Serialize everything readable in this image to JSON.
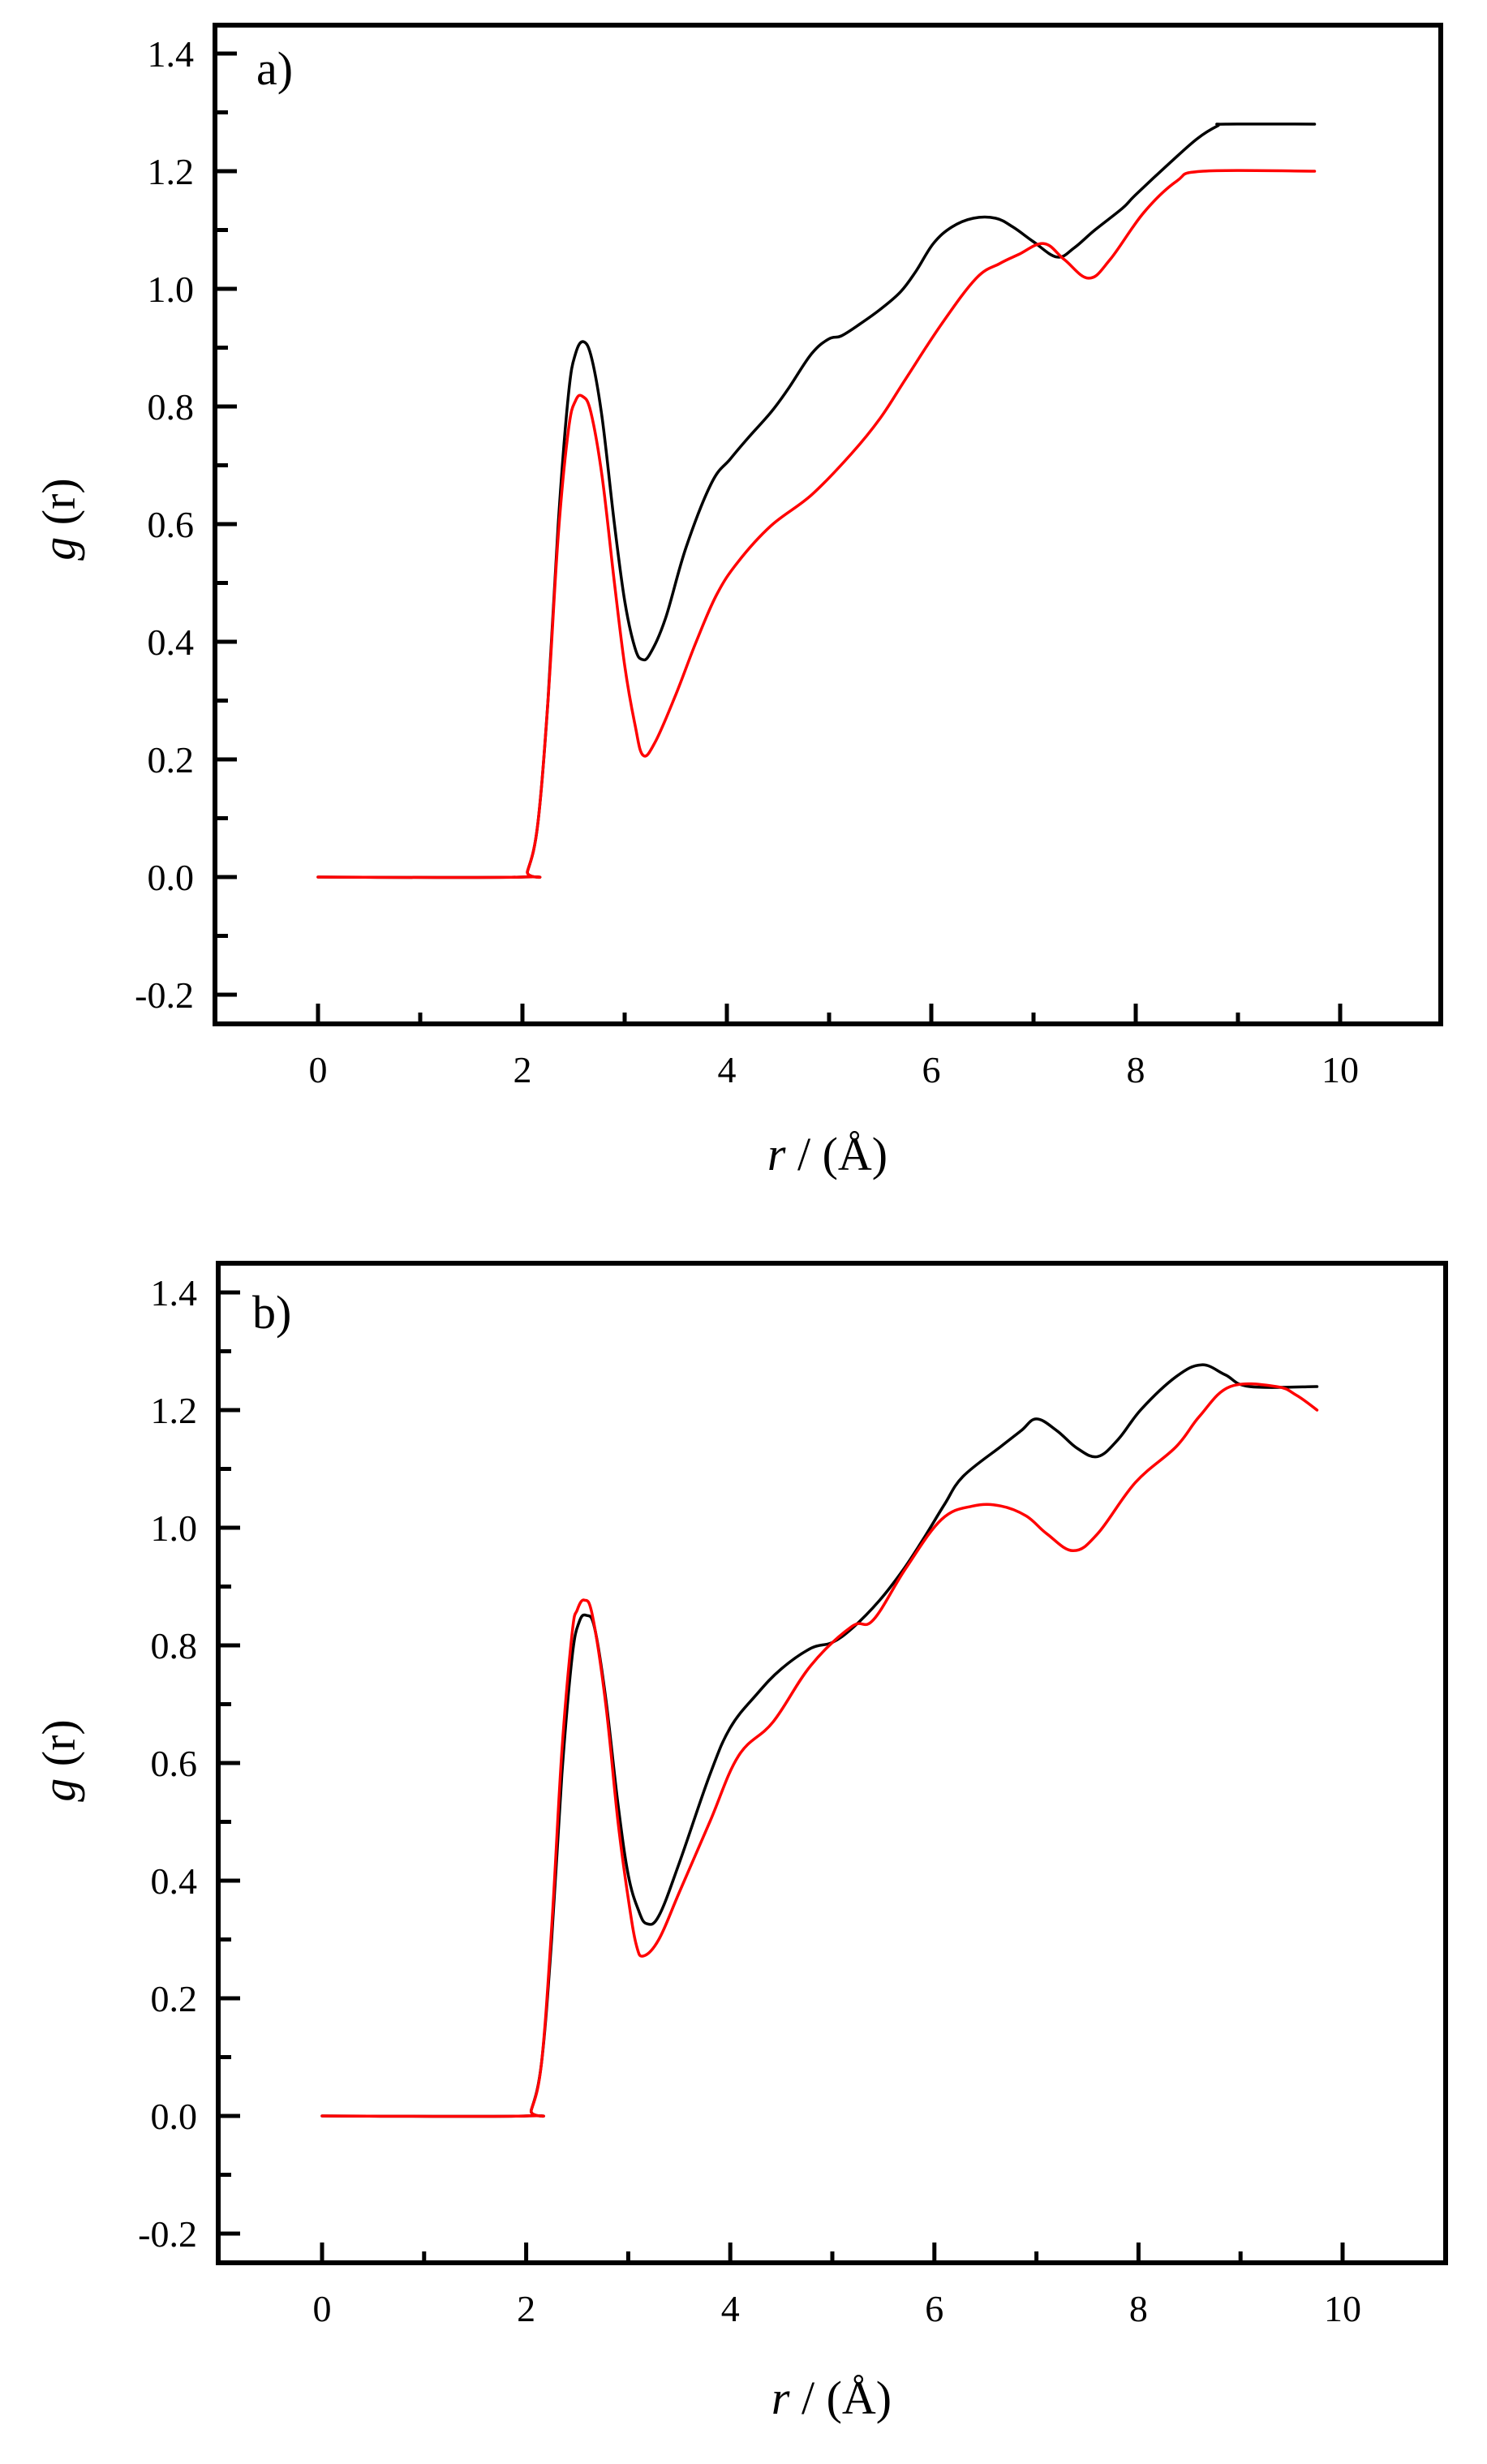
{
  "figure": {
    "panels": [
      {
        "tag": "a)",
        "xlabel_italic": "r",
        "xlabel_rest": " / (Å)",
        "ylabel_italic": "g",
        "ylabel_rest": " (r)",
        "xticks": [
          "0",
          "2",
          "4",
          "6",
          "8",
          "10"
        ],
        "yticks": [
          "-0.2",
          "0.0",
          "0.2",
          "0.4",
          "0.6",
          "0.8",
          "1.0",
          "1.2",
          "1.4"
        ]
      },
      {
        "tag": "b)",
        "xlabel_italic": "r",
        "xlabel_rest": " / (Å)",
        "ylabel_italic": "g",
        "ylabel_rest": " (r)",
        "xticks": [
          "0",
          "2",
          "4",
          "6",
          "8",
          "10"
        ],
        "yticks": [
          "-0.2",
          "0.0",
          "0.2",
          "0.4",
          "0.6",
          "0.8",
          "1.0",
          "1.2",
          "1.4"
        ]
      }
    ],
    "colors": {
      "series_black": "#000000",
      "series_red": "#ff0000",
      "axes": "#000000",
      "background": "#ffffff"
    }
  },
  "chart_data": [
    {
      "type": "line",
      "title": "a)",
      "xlabel": "r / (Å)",
      "ylabel": "g (r)",
      "xlim": [
        -1,
        11
      ],
      "ylim": [
        -0.25,
        1.45
      ],
      "xticks": [
        0,
        2,
        4,
        6,
        8,
        10
      ],
      "yticks": [
        -0.2,
        0.0,
        0.2,
        0.4,
        0.6,
        0.8,
        1.0,
        1.2,
        1.4
      ],
      "grid": false,
      "legend": null,
      "series": [
        {
          "name": "black",
          "color": "#000000",
          "x": [
            0,
            2.0,
            2.05,
            2.15,
            2.25,
            2.35,
            2.45,
            2.52,
            2.6,
            2.68,
            2.78,
            2.9,
            3.0,
            3.1,
            3.17,
            3.25,
            3.4,
            3.6,
            3.85,
            4.03,
            4.2,
            4.43,
            4.6,
            4.83,
            5.0,
            5.12,
            5.3,
            5.5,
            5.7,
            5.85,
            6.02,
            6.2,
            6.41,
            6.63,
            6.8,
            7.0,
            7.23,
            7.4,
            7.6,
            7.87,
            8.0,
            8.34,
            8.6,
            8.8,
            8.88,
            9.75
          ],
          "y": [
            0,
            0,
            0.01,
            0.09,
            0.3,
            0.6,
            0.82,
            0.89,
            0.91,
            0.88,
            0.78,
            0.6,
            0.47,
            0.39,
            0.37,
            0.38,
            0.44,
            0.56,
            0.67,
            0.71,
            0.745,
            0.79,
            0.83,
            0.89,
            0.915,
            0.92,
            0.94,
            0.965,
            0.995,
            1.03,
            1.077,
            1.105,
            1.12,
            1.12,
            1.105,
            1.08,
            1.054,
            1.07,
            1.1,
            1.137,
            1.16,
            1.215,
            1.255,
            1.277,
            1.28,
            1.28
          ]
        },
        {
          "name": "red",
          "color": "#ff0000",
          "x": [
            0,
            2.0,
            2.05,
            2.15,
            2.25,
            2.35,
            2.45,
            2.52,
            2.59,
            2.67,
            2.78,
            2.9,
            3.0,
            3.1,
            3.18,
            3.3,
            3.5,
            3.7,
            3.9,
            4.11,
            4.43,
            4.83,
            5.22,
            5.5,
            5.75,
            6.1,
            6.44,
            6.67,
            6.85,
            7.1,
            7.3,
            7.54,
            7.75,
            8.08,
            8.4,
            8.66,
            9.75
          ],
          "y": [
            0,
            0,
            0.01,
            0.09,
            0.3,
            0.58,
            0.76,
            0.81,
            0.817,
            0.79,
            0.68,
            0.5,
            0.36,
            0.26,
            0.207,
            0.23,
            0.31,
            0.4,
            0.48,
            0.536,
            0.597,
            0.65,
            0.72,
            0.78,
            0.847,
            0.94,
            1.018,
            1.043,
            1.058,
            1.077,
            1.05,
            1.018,
            1.05,
            1.13,
            1.183,
            1.2,
            1.2
          ]
        }
      ]
    },
    {
      "type": "line",
      "title": "b)",
      "xlabel": "r / (Å)",
      "ylabel": "g (r)",
      "xlim": [
        -1,
        11
      ],
      "ylim": [
        -0.25,
        1.45
      ],
      "xticks": [
        0,
        2,
        4,
        6,
        8,
        10
      ],
      "yticks": [
        -0.2,
        0.0,
        0.2,
        0.4,
        0.6,
        0.8,
        1.0,
        1.2,
        1.4
      ],
      "grid": false,
      "legend": null,
      "series": [
        {
          "name": "black",
          "color": "#000000",
          "x": [
            0,
            2.0,
            2.05,
            2.15,
            2.25,
            2.35,
            2.45,
            2.52,
            2.59,
            2.67,
            2.78,
            2.9,
            3.0,
            3.1,
            3.18,
            3.3,
            3.5,
            3.8,
            4.0,
            4.26,
            4.5,
            4.79,
            5.0,
            5.2,
            5.46,
            5.7,
            5.91,
            6.1,
            6.28,
            6.65,
            6.85,
            7.0,
            7.2,
            7.4,
            7.6,
            7.8,
            8.03,
            8.37,
            8.62,
            8.85,
            9.09,
            9.75
          ],
          "y": [
            0,
            0,
            0.01,
            0.09,
            0.3,
            0.58,
            0.78,
            0.84,
            0.851,
            0.83,
            0.71,
            0.53,
            0.41,
            0.35,
            0.327,
            0.34,
            0.43,
            0.58,
            0.66,
            0.717,
            0.76,
            0.795,
            0.805,
            0.83,
            0.876,
            0.93,
            0.986,
            1.04,
            1.087,
            1.138,
            1.165,
            1.185,
            1.165,
            1.135,
            1.121,
            1.15,
            1.202,
            1.257,
            1.277,
            1.26,
            1.24,
            1.24
          ]
        },
        {
          "name": "red",
          "color": "#ff0000",
          "x": [
            0,
            2.0,
            2.05,
            2.15,
            2.25,
            2.35,
            2.45,
            2.5,
            2.57,
            2.65,
            2.78,
            2.9,
            3.0,
            3.08,
            3.15,
            3.3,
            3.5,
            3.8,
            4.08,
            4.42,
            4.79,
            5.19,
            5.4,
            5.72,
            6.07,
            6.38,
            6.65,
            6.9,
            7.1,
            7.36,
            7.6,
            7.97,
            8.37,
            8.6,
            8.9,
            9.35,
            9.55,
            9.75
          ],
          "y": [
            0,
            0,
            0.01,
            0.09,
            0.32,
            0.62,
            0.82,
            0.86,
            0.877,
            0.85,
            0.7,
            0.5,
            0.37,
            0.29,
            0.272,
            0.3,
            0.38,
            0.5,
            0.612,
            0.67,
            0.766,
            0.832,
            0.843,
            0.931,
            1.014,
            1.037,
            1.037,
            1.02,
            0.99,
            0.961,
            0.99,
            1.077,
            1.138,
            1.19,
            1.24,
            1.24,
            1.225,
            1.2
          ]
        }
      ]
    }
  ]
}
